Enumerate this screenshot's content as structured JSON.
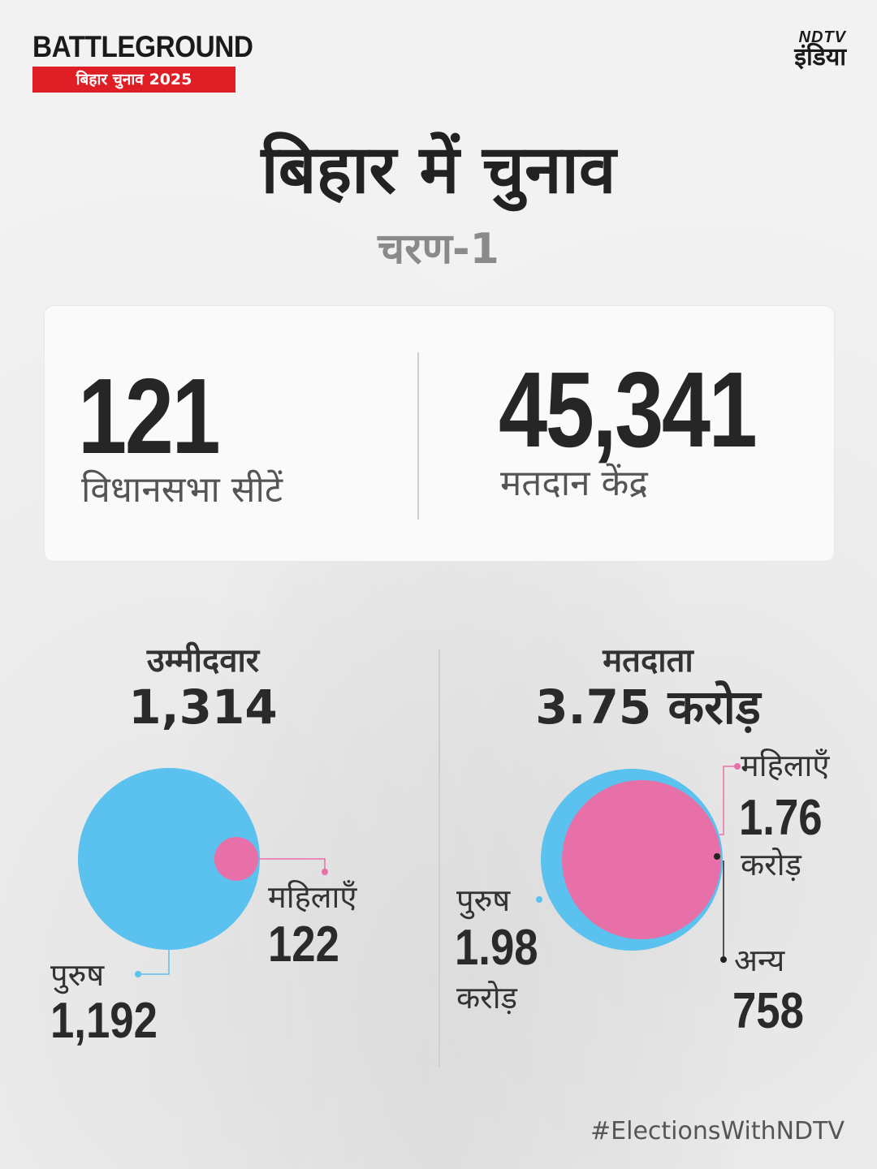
{
  "brand": {
    "title": "BATTLEGROUND",
    "subtitle": "बिहार चुनाव 2025"
  },
  "logo": {
    "top": "NDTV",
    "main": "इंडिया"
  },
  "heading": {
    "title": "बिहार में चुनाव",
    "subtitle": "चरण-1"
  },
  "stats": {
    "seats": {
      "value": "121",
      "label": "विधानसभा सीटें"
    },
    "polling_stations": {
      "value": "45,341",
      "label": "मतदान केंद्र"
    }
  },
  "candidates": {
    "heading": "उम्मीदवार",
    "total": "1,314",
    "men": {
      "label": "पुरुष",
      "value": "1,192"
    },
    "women": {
      "label": "महिलाएँ",
      "value": "122"
    }
  },
  "voters": {
    "heading": "मतदाता",
    "total": "3.75 करोड़",
    "women": {
      "label": "महिलाएँ",
      "value": "1.76",
      "unit": "करोड़"
    },
    "men": {
      "label": "पुरुष",
      "value": "1.98",
      "unit": "करोड़"
    },
    "others": {
      "label": "अन्य",
      "value": "758"
    }
  },
  "colors": {
    "men": "#5bc1ef",
    "women": "#e870a8",
    "brand_red": "#e01e26"
  },
  "hashtag": "#ElectionsWithNDTV"
}
